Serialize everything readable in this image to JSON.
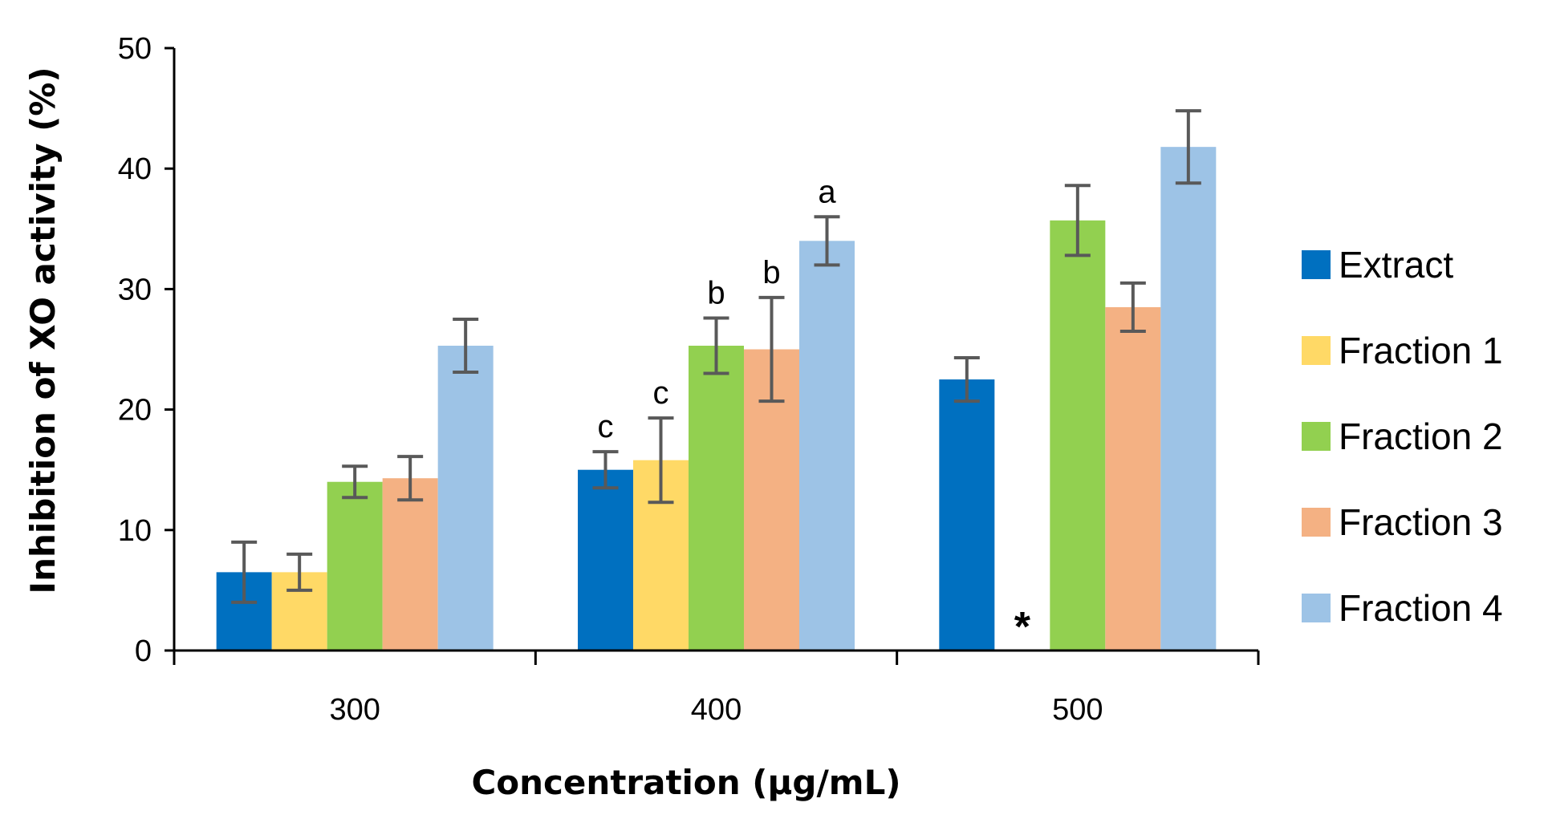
{
  "chart_data": {
    "type": "bar",
    "title": "",
    "xlabel": "Concentration (µg/mL)",
    "ylabel": "Inhibition of XO activity (%)",
    "ylim": [
      0,
      50
    ],
    "yticks": [
      "0",
      "10",
      "20",
      "30",
      "40",
      "50"
    ],
    "categories": [
      "300",
      "400",
      "500"
    ],
    "series": [
      {
        "name": "Extract",
        "color": "#0070C0",
        "values": [
          6.5,
          15.0,
          22.5
        ],
        "errors": [
          2.5,
          1.5,
          1.8
        ]
      },
      {
        "name": "Fraction 1",
        "color": "#FFD966",
        "values": [
          6.5,
          15.8,
          0
        ],
        "errors": [
          1.5,
          3.5,
          0
        ]
      },
      {
        "name": "Fraction 2",
        "color": "#92D050",
        "values": [
          14.0,
          25.3,
          35.7
        ],
        "errors": [
          1.3,
          2.3,
          2.9
        ]
      },
      {
        "name": "Fraction 3",
        "color": "#F4B183",
        "values": [
          14.3,
          25.0,
          28.5
        ],
        "errors": [
          1.8,
          4.3,
          2.0
        ]
      },
      {
        "name": "Fraction 4",
        "color": "#9DC3E6",
        "values": [
          25.3,
          34.0,
          41.8
        ],
        "errors": [
          2.2,
          2.0,
          3.0
        ]
      }
    ],
    "annotations": [
      {
        "category": "400",
        "series": "Extract",
        "text": "c"
      },
      {
        "category": "400",
        "series": "Fraction 1",
        "text": "c"
      },
      {
        "category": "400",
        "series": "Fraction 2",
        "text": "b"
      },
      {
        "category": "400",
        "series": "Fraction 3",
        "text": "b"
      },
      {
        "category": "400",
        "series": "Fraction 4",
        "text": "a"
      }
    ],
    "missing_marker": {
      "category": "500",
      "series": "Fraction 1",
      "text": "*"
    },
    "legend_position": "right",
    "grid": false
  }
}
